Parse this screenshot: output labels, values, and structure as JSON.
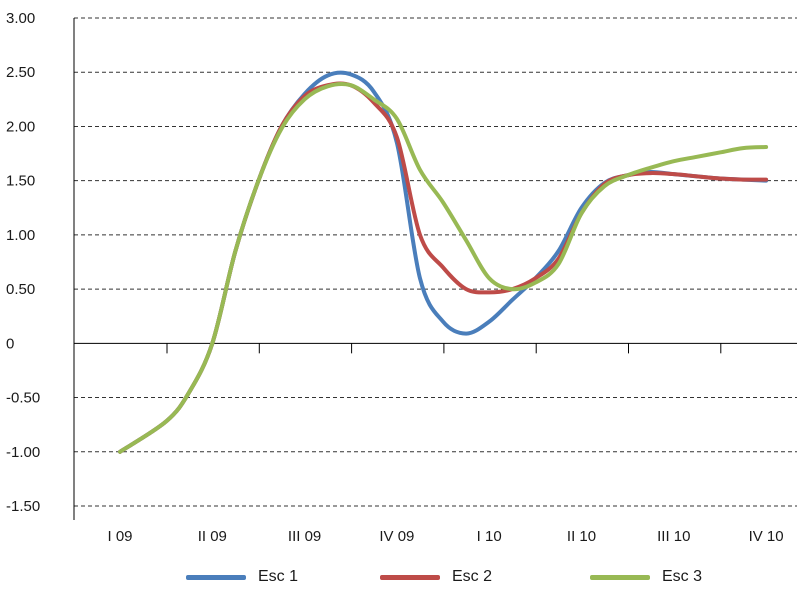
{
  "chart_data": {
    "type": "line",
    "categories": [
      "I 09",
      "II 09",
      "III 09",
      "IV 09",
      "I 10",
      "II 10",
      "III 10",
      "IV 10"
    ],
    "y_ticks": [
      "3.00",
      "2.50",
      "2.00",
      "1.50",
      "1.00",
      "0.50",
      "0",
      "-0.50",
      "-1.00",
      "-1.50"
    ],
    "ylim": [
      -1.5,
      3.0
    ],
    "grid": "horizontal dashed",
    "legend_position": "bottom",
    "series": [
      {
        "name": "Esc 1",
        "color": "#4a7ebb",
        "x": [
          0,
          0.5,
          0.75,
          1,
          1.25,
          1.5,
          1.75,
          2,
          2.25,
          2.5,
          2.75,
          3,
          3.25,
          3.5,
          3.75,
          4,
          4.25,
          4.5,
          4.75,
          5,
          5.25,
          5.5,
          5.75,
          6,
          6.25,
          6.5,
          6.75,
          7
        ],
        "y": [
          -1.0,
          -0.72,
          -0.45,
          0.0,
          0.85,
          1.5,
          2.0,
          2.3,
          2.47,
          2.48,
          2.32,
          1.85,
          0.6,
          0.2,
          0.09,
          0.2,
          0.4,
          0.6,
          0.85,
          1.25,
          1.48,
          1.55,
          1.58,
          1.56,
          1.54,
          1.52,
          1.51,
          1.5
        ]
      },
      {
        "name": "Esc 2",
        "color": "#be4b48",
        "x": [
          0,
          0.5,
          0.75,
          1,
          1.25,
          1.5,
          1.75,
          2,
          2.25,
          2.5,
          2.75,
          3,
          3.25,
          3.5,
          3.75,
          4,
          4.25,
          4.5,
          4.75,
          5,
          5.25,
          5.5,
          5.75,
          6,
          6.25,
          6.5,
          6.75,
          7
        ],
        "y": [
          -1.0,
          -0.72,
          -0.45,
          0.0,
          0.85,
          1.5,
          2.0,
          2.28,
          2.38,
          2.38,
          2.22,
          1.9,
          1.0,
          0.7,
          0.5,
          0.47,
          0.5,
          0.6,
          0.78,
          1.2,
          1.47,
          1.55,
          1.57,
          1.56,
          1.54,
          1.52,
          1.51,
          1.51
        ]
      },
      {
        "name": "Esc 3",
        "color": "#98b954",
        "x": [
          0,
          0.5,
          0.75,
          1,
          1.25,
          1.5,
          1.75,
          2,
          2.25,
          2.5,
          2.75,
          3,
          3.25,
          3.5,
          3.75,
          4,
          4.25,
          4.5,
          4.75,
          5,
          5.25,
          5.5,
          5.75,
          6,
          6.25,
          6.5,
          6.75,
          7
        ],
        "y": [
          -1.0,
          -0.72,
          -0.45,
          0.0,
          0.85,
          1.5,
          1.98,
          2.25,
          2.37,
          2.38,
          2.25,
          2.07,
          1.6,
          1.3,
          0.95,
          0.6,
          0.5,
          0.56,
          0.73,
          1.2,
          1.45,
          1.55,
          1.62,
          1.68,
          1.72,
          1.76,
          1.8,
          1.81
        ]
      }
    ]
  }
}
